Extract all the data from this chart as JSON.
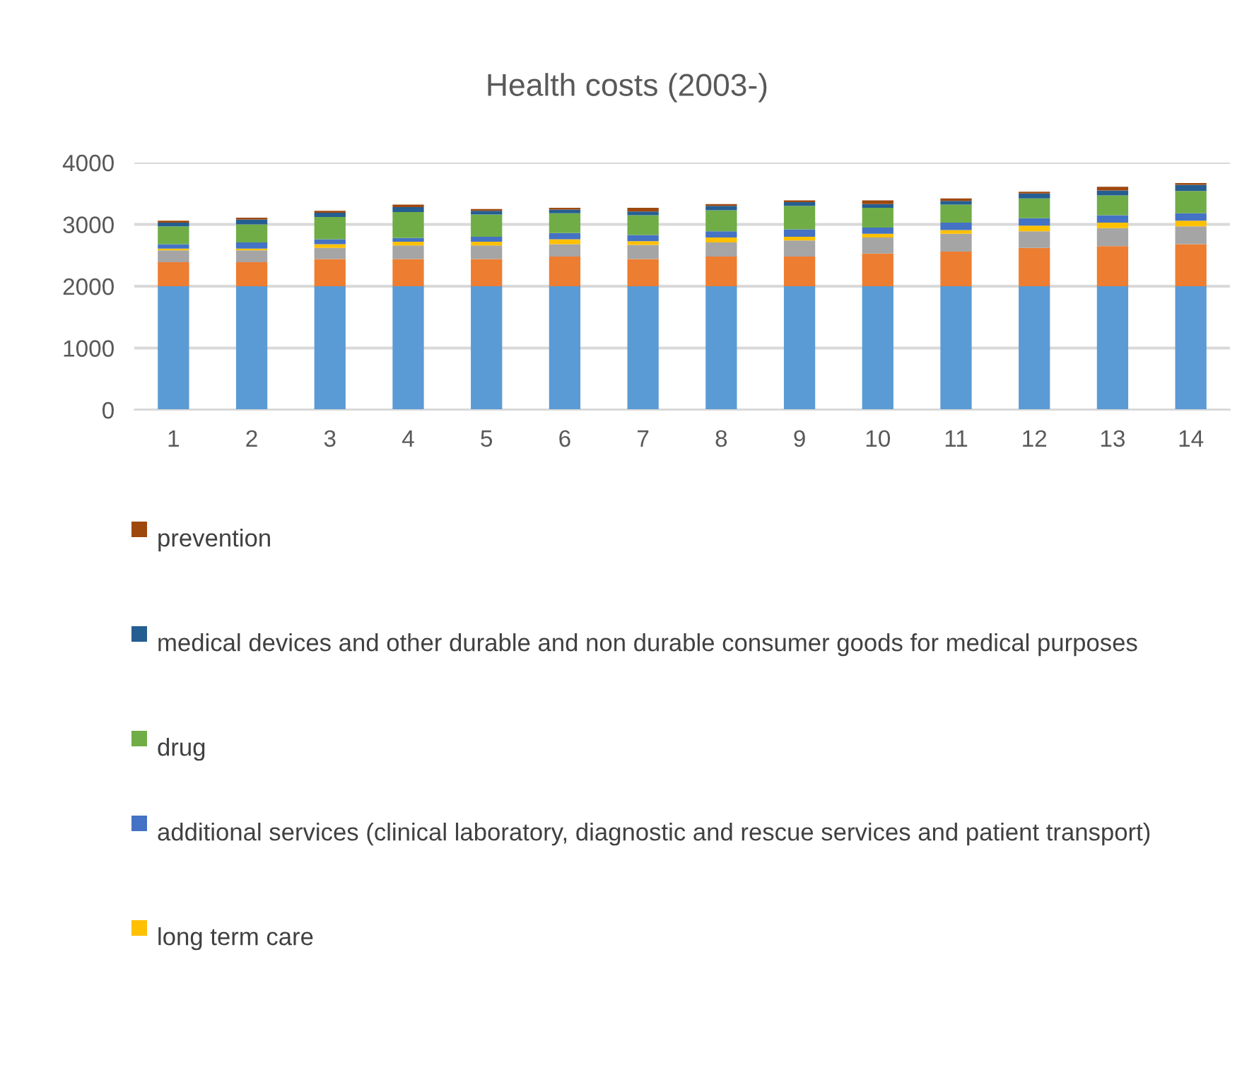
{
  "chart_data": {
    "type": "bar",
    "stacked": true,
    "title": "Health costs (2003-)",
    "categories": [
      "1",
      "2",
      "3",
      "4",
      "5",
      "6",
      "7",
      "8",
      "9",
      "10",
      "11",
      "12",
      "13",
      "14"
    ],
    "ylim": [
      0,
      4000
    ],
    "yticks": [
      0,
      1000,
      2000,
      3000,
      4000
    ],
    "grid": "y",
    "legend": "bottom",
    "series": [
      {
        "color": "#5b9bd5",
        "values": [
          2000,
          2000,
          2000,
          2000,
          2000,
          2000,
          2000,
          2000,
          2000,
          2000,
          2000,
          2000,
          2000,
          2000
        ]
      },
      {
        "color": "#ed7d31",
        "values": [
          390,
          390,
          440,
          440,
          440,
          480,
          440,
          480,
          480,
          530,
          560,
          620,
          650,
          680
        ]
      },
      {
        "color": "#a5a5a5",
        "values": [
          190,
          190,
          180,
          220,
          220,
          200,
          230,
          230,
          260,
          260,
          290,
          270,
          290,
          290
        ]
      },
      {
        "name": "long term care",
        "color": "#ffc000",
        "values": [
          30,
          30,
          60,
          60,
          60,
          80,
          60,
          80,
          60,
          60,
          60,
          90,
          90,
          90
        ]
      },
      {
        "name": "additional services (clinical laboratory, diagnostic and rescue services and patient transport)",
        "color": "#4472c4",
        "values": [
          70,
          100,
          80,
          60,
          80,
          100,
          100,
          100,
          120,
          100,
          120,
          120,
          120,
          120
        ]
      },
      {
        "name": "drug",
        "color": "#70ad47",
        "values": [
          290,
          290,
          360,
          420,
          360,
          320,
          320,
          340,
          380,
          320,
          290,
          320,
          320,
          360
        ]
      },
      {
        "name": "medical devices and other durable and non durable consumer goods for medical purposes",
        "color": "#255e91",
        "values": [
          60,
          80,
          70,
          80,
          60,
          60,
          60,
          70,
          60,
          60,
          60,
          80,
          80,
          100
        ]
      },
      {
        "name": "prevention",
        "color": "#9e480e",
        "values": [
          30,
          30,
          30,
          40,
          30,
          30,
          60,
          30,
          30,
          60,
          40,
          30,
          60,
          30
        ]
      }
    ]
  }
}
